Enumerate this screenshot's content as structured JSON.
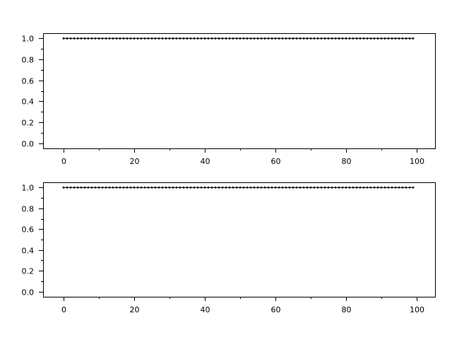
{
  "chart_data": [
    {
      "type": "line",
      "x": {
        "start": 0,
        "end": 99,
        "step": 1
      },
      "series": [
        {
          "y_constant": 1.0,
          "color": "#000000",
          "marker": "dot"
        }
      ],
      "xlim": [
        -5.8,
        105.2
      ],
      "ylim": [
        -0.05,
        1.05
      ],
      "xticks": [
        "0",
        "20",
        "40",
        "60",
        "80",
        "100"
      ],
      "yticks": [
        "0.0",
        "0.2",
        "0.4",
        "0.6",
        "0.8",
        "1.0"
      ],
      "grid": false
    },
    {
      "type": "line",
      "x": {
        "start": 0,
        "end": 99,
        "step": 1
      },
      "series": [
        {
          "y_constant": 1.0,
          "color": "#000000",
          "marker": "dot"
        }
      ],
      "xlim": [
        -5.8,
        105.2
      ],
      "ylim": [
        -0.05,
        1.05
      ],
      "xticks": [
        "0",
        "20",
        "40",
        "60",
        "80",
        "100"
      ],
      "yticks": [
        "0.0",
        "0.2",
        "0.4",
        "0.6",
        "0.8",
        "1.0"
      ],
      "grid": false
    }
  ]
}
